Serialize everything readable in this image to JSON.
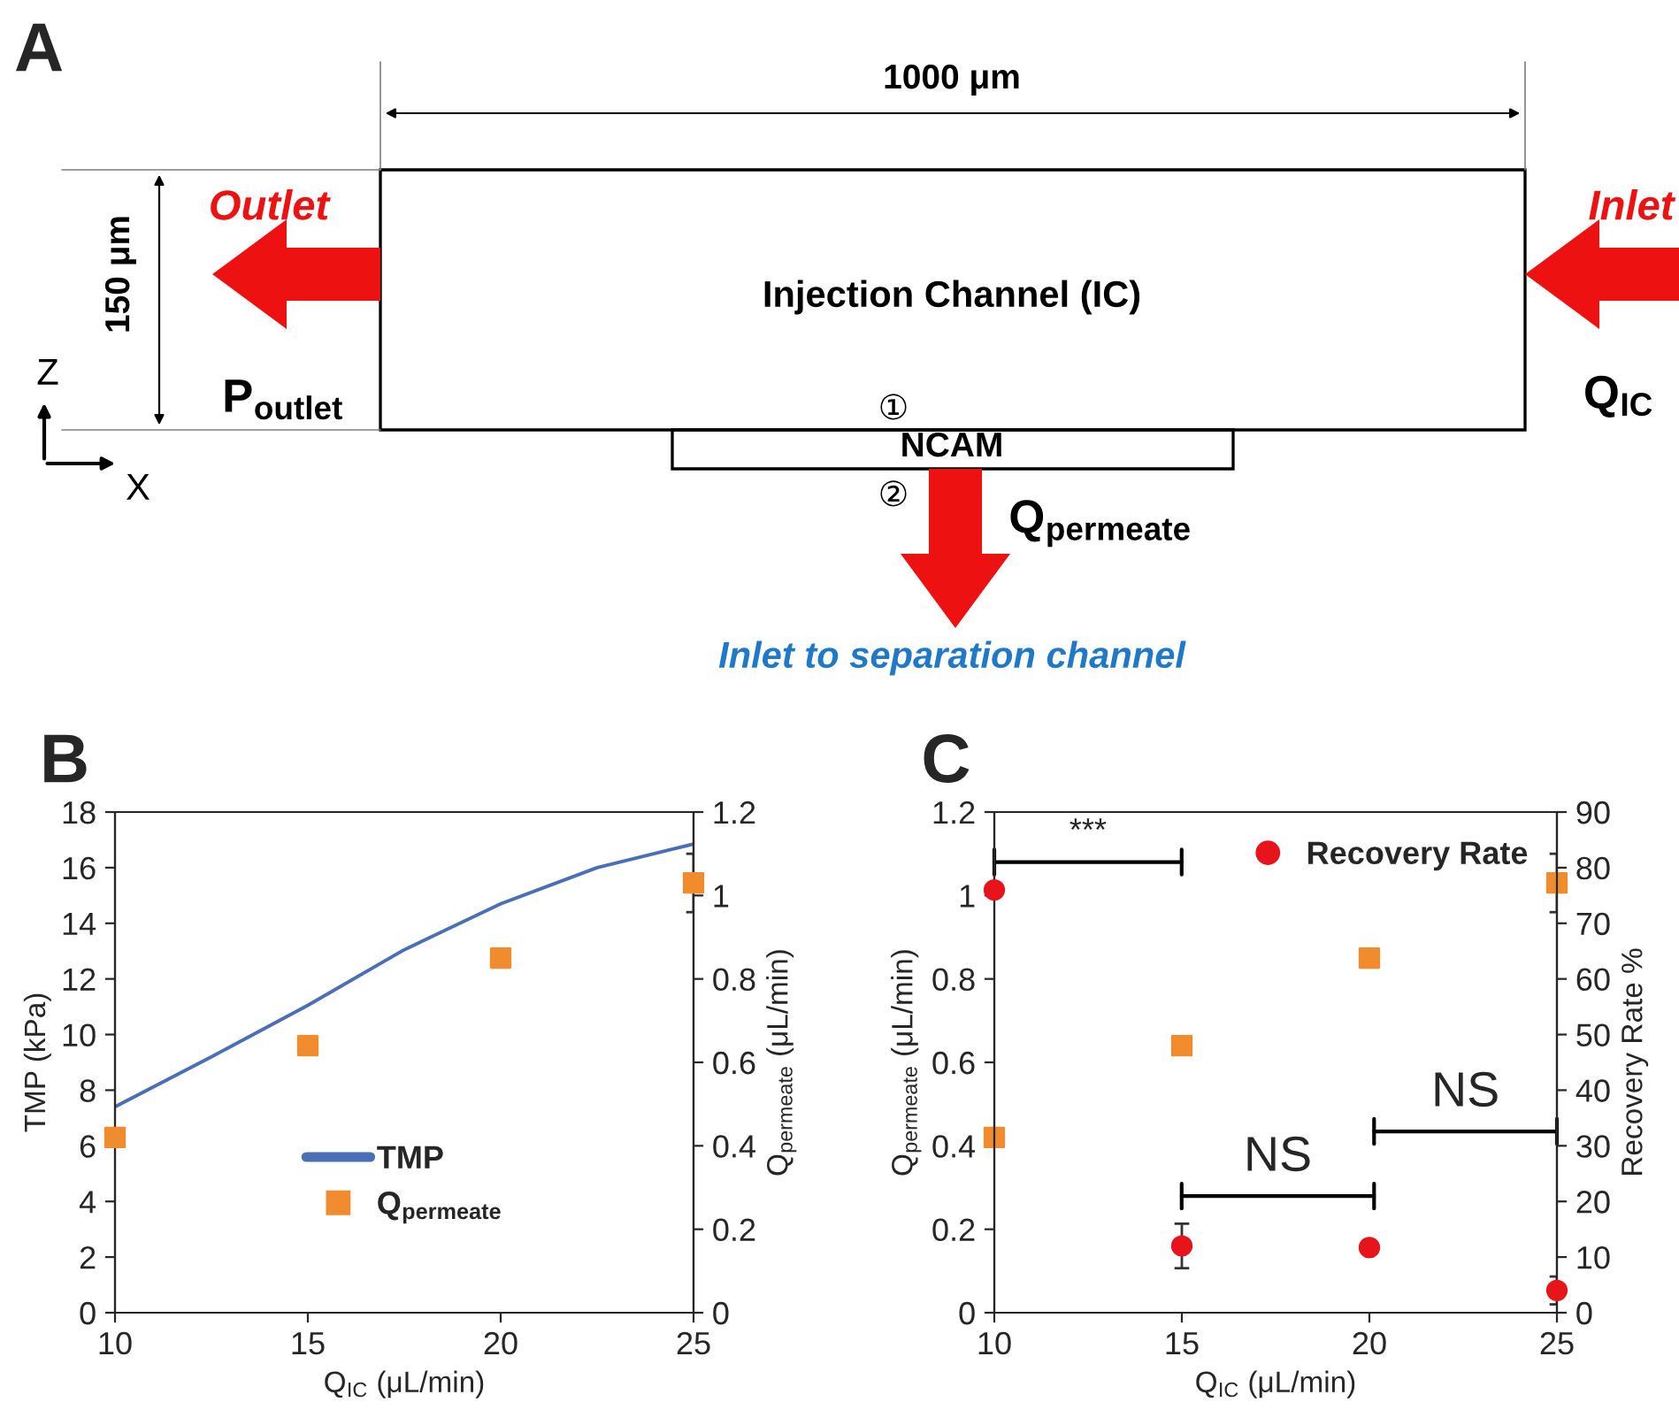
{
  "chart_data": [
    {
      "type": "other",
      "title": "A",
      "annotations": [
        "1000 μm",
        "150 μm",
        "Outlet",
        "Inlet",
        "Injection Channel (IC)",
        "P$_{outlet}$",
        "Q$_{IC}$",
        "①",
        "NCAM",
        "②",
        "Q$_{permeate}$",
        "Inlet to separation channel",
        "Z",
        "X"
      ]
    },
    {
      "type": "line",
      "title": "B",
      "xlabel": "Q$_{IC}$ (μL/min)",
      "ylabel": "TMP (kPa)",
      "y2label": "Q$_{permeate}$ (μL/min)",
      "xlim": [
        10,
        25
      ],
      "xticks": [
        10,
        15,
        20,
        25
      ],
      "ylim": [
        0,
        18
      ],
      "yticks": [
        0,
        2,
        4,
        6,
        8,
        10,
        12,
        14,
        16,
        18
      ],
      "y2lim": [
        0,
        1.2
      ],
      "y2ticks": [
        0,
        0.2,
        0.4,
        0.6,
        0.8,
        1,
        1.2
      ],
      "legend": "bottom",
      "grid": false,
      "series": [
        {
          "name": "TMP",
          "type": "line",
          "marker": "none",
          "color": "#4a6fb5",
          "x": [
            10,
            12.5,
            15,
            17.5,
            20,
            22.5,
            25
          ],
          "values": [
            7.4,
            9.2,
            11.05,
            13.05,
            14.7,
            16.0,
            16.85
          ]
        },
        {
          "name": "Q$_{permeate}$",
          "type": "scatter",
          "marker": "square",
          "axis": "y2",
          "color": "#f08c2e",
          "x": [
            10,
            15,
            20,
            25
          ],
          "values": [
            0.42,
            0.64,
            0.85,
            1.03
          ],
          "errors": [
            null,
            null,
            null,
            0.07
          ]
        }
      ]
    },
    {
      "type": "scatter",
      "title": "C",
      "xlabel": "Q$_{IC}$ (μL/min)",
      "ylabel": "Q$_{permeate}$ (μL/min)",
      "y2label": "Recovery Rate %",
      "xlim": [
        10,
        25
      ],
      "xticks": [
        10,
        15,
        20,
        25
      ],
      "ylim": [
        0,
        1.2
      ],
      "yticks": [
        0,
        0.2,
        0.4,
        0.6,
        0.8,
        1,
        1.2
      ],
      "y2lim": [
        0,
        90
      ],
      "y2ticks": [
        0,
        10,
        20,
        30,
        40,
        50,
        60,
        70,
        80,
        90
      ],
      "legend": "top right",
      "grid": false,
      "series": [
        {
          "type": "scatter",
          "marker": "square",
          "color": "#f08c2e",
          "x": [
            10,
            15,
            20,
            25
          ],
          "values": [
            0.42,
            0.64,
            0.85,
            1.03
          ],
          "errors": [
            null,
            null,
            null,
            0.07
          ]
        },
        {
          "name": "Recovery Rate",
          "type": "scatter",
          "marker": "circle",
          "axis": "y2",
          "color": "#e8141c",
          "x": [
            10,
            15,
            20,
            25
          ],
          "values": [
            76,
            12,
            11.7,
            4
          ],
          "errors": [
            null,
            4,
            null,
            2.5
          ]
        }
      ],
      "annotations": [
        "***",
        "NS",
        "NS"
      ]
    }
  ]
}
